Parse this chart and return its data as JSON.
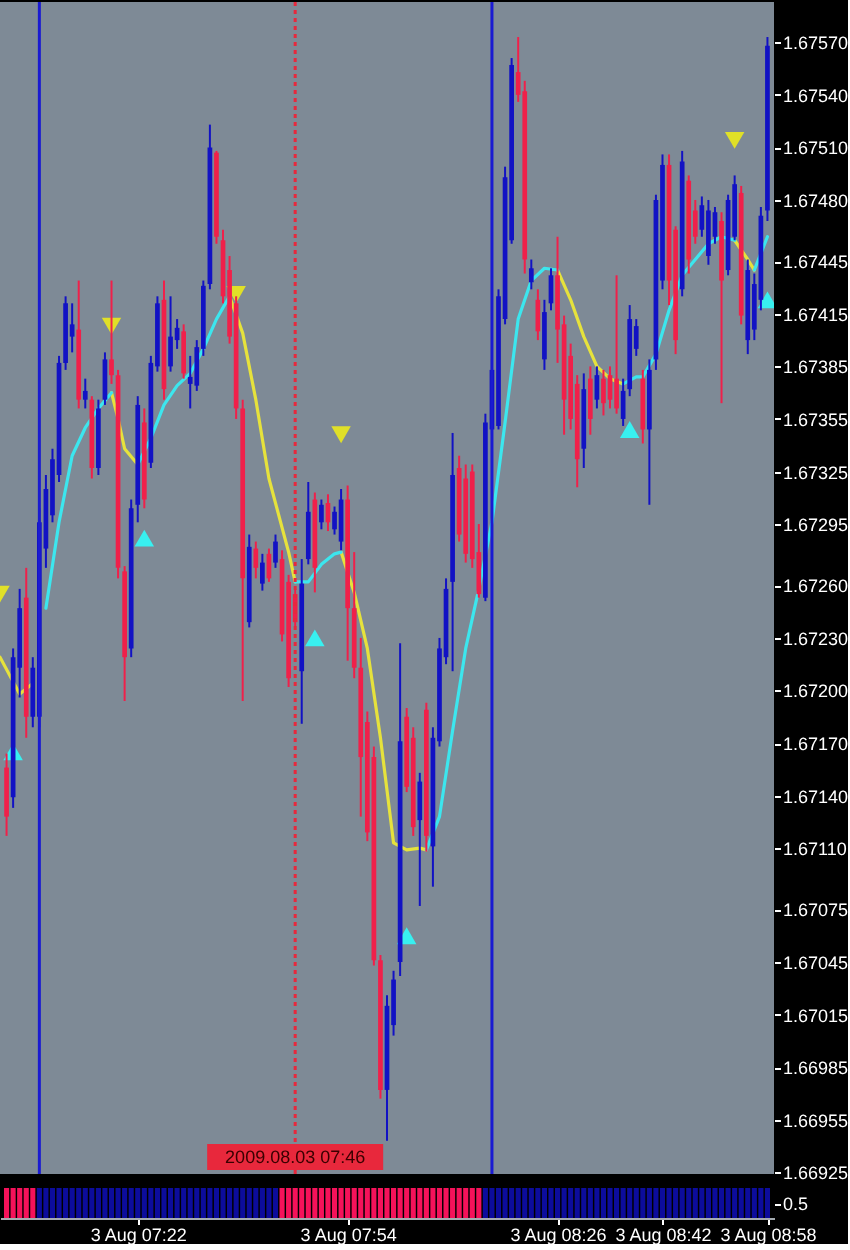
{
  "chart_data": [
    {
      "type": "candlestick",
      "x": [
        "2009-08-03T07:02",
        "2009-08-03T07:03",
        "2009-08-03T07:04",
        "2009-08-03T07:05",
        "2009-08-03T07:06",
        "2009-08-03T07:07",
        "2009-08-03T07:08",
        "2009-08-03T07:09",
        "2009-08-03T07:10",
        "2009-08-03T07:11",
        "2009-08-03T07:12",
        "2009-08-03T07:13",
        "2009-08-03T07:14",
        "2009-08-03T07:15",
        "2009-08-03T07:16",
        "2009-08-03T07:17",
        "2009-08-03T07:18",
        "2009-08-03T07:19",
        "2009-08-03T07:20",
        "2009-08-03T07:21",
        "2009-08-03T07:22",
        "2009-08-03T07:23",
        "2009-08-03T07:24",
        "2009-08-03T07:25",
        "2009-08-03T07:26",
        "2009-08-03T07:27",
        "2009-08-03T07:28",
        "2009-08-03T07:29",
        "2009-08-03T07:30",
        "2009-08-03T07:31",
        "2009-08-03T07:32",
        "2009-08-03T07:33",
        "2009-08-03T07:34",
        "2009-08-03T07:35",
        "2009-08-03T07:36",
        "2009-08-03T07:37",
        "2009-08-03T07:38",
        "2009-08-03T07:39",
        "2009-08-03T07:40",
        "2009-08-03T07:41",
        "2009-08-03T07:42",
        "2009-08-03T07:43",
        "2009-08-03T07:44",
        "2009-08-03T07:45",
        "2009-08-03T07:46",
        "2009-08-03T07:47",
        "2009-08-03T07:48",
        "2009-08-03T07:49",
        "2009-08-03T07:50",
        "2009-08-03T07:51",
        "2009-08-03T07:52",
        "2009-08-03T07:53",
        "2009-08-03T07:54",
        "2009-08-03T07:55",
        "2009-08-03T07:56",
        "2009-08-03T07:57",
        "2009-08-03T07:58",
        "2009-08-03T07:59",
        "2009-08-03T08:00",
        "2009-08-03T08:01",
        "2009-08-03T08:02",
        "2009-08-03T08:03",
        "2009-08-03T08:04",
        "2009-08-03T08:05",
        "2009-08-03T08:06",
        "2009-08-03T08:07",
        "2009-08-03T08:08",
        "2009-08-03T08:09",
        "2009-08-03T08:10",
        "2009-08-03T08:11",
        "2009-08-03T08:12",
        "2009-08-03T08:13",
        "2009-08-03T08:14",
        "2009-08-03T08:15",
        "2009-08-03T08:16",
        "2009-08-03T08:17",
        "2009-08-03T08:18",
        "2009-08-03T08:19",
        "2009-08-03T08:20",
        "2009-08-03T08:21",
        "2009-08-03T08:22",
        "2009-08-03T08:23",
        "2009-08-03T08:24",
        "2009-08-03T08:25",
        "2009-08-03T08:26",
        "2009-08-03T08:27",
        "2009-08-03T08:28",
        "2009-08-03T08:29",
        "2009-08-03T08:30",
        "2009-08-03T08:31",
        "2009-08-03T08:32",
        "2009-08-03T08:33",
        "2009-08-03T08:34",
        "2009-08-03T08:35",
        "2009-08-03T08:36",
        "2009-08-03T08:37",
        "2009-08-03T08:38",
        "2009-08-03T08:39",
        "2009-08-03T08:40",
        "2009-08-03T08:41",
        "2009-08-03T08:42",
        "2009-08-03T08:43",
        "2009-08-03T08:44",
        "2009-08-03T08:45",
        "2009-08-03T08:46",
        "2009-08-03T08:47",
        "2009-08-03T08:48",
        "2009-08-03T08:49",
        "2009-08-03T08:50",
        "2009-08-03T08:51",
        "2009-08-03T08:52",
        "2009-08-03T08:53",
        "2009-08-03T08:54",
        "2009-08-03T08:55",
        "2009-08-03T08:56",
        "2009-08-03T08:57",
        "2009-08-03T08:58"
      ],
      "ohlc": [
        [
          1.67156,
          1.67164,
          1.67117,
          1.67128
        ],
        [
          1.67139,
          1.67224,
          1.67133,
          1.67219
        ],
        [
          1.67213,
          1.67258,
          1.67196,
          1.67247
        ],
        [
          1.67253,
          1.6727,
          1.67173,
          1.67185
        ],
        [
          1.67185,
          1.67219,
          1.67179,
          1.67213
        ],
        [
          1.67185,
          1.67304,
          1.67179,
          1.67296
        ],
        [
          1.67281,
          1.67323,
          1.6727,
          1.67315
        ],
        [
          1.673,
          1.67338,
          1.67296,
          1.67332
        ],
        [
          1.67323,
          1.67391,
          1.67319,
          1.67387
        ],
        [
          1.67387,
          1.67425,
          1.67383,
          1.67421
        ],
        [
          1.67402,
          1.67421,
          1.67393,
          1.67409
        ],
        [
          1.67406,
          1.67434,
          1.67361,
          1.67366
        ],
        [
          1.67366,
          1.67378,
          1.67361,
          1.67371
        ],
        [
          1.67366,
          1.67368,
          1.67321,
          1.67327
        ],
        [
          1.67327,
          1.67366,
          1.67323,
          1.67361
        ],
        [
          1.67366,
          1.67393,
          1.67363,
          1.67389
        ],
        [
          1.67389,
          1.67434,
          1.67375,
          1.6738
        ],
        [
          1.6738,
          1.67383,
          1.67264,
          1.6727
        ],
        [
          1.67268,
          1.67271,
          1.67194,
          1.67219
        ],
        [
          1.67224,
          1.67309,
          1.67219,
          1.67304
        ],
        [
          1.67306,
          1.67368,
          1.67296,
          1.67363
        ],
        [
          1.67353,
          1.67361,
          1.67304,
          1.67309
        ],
        [
          1.6733,
          1.67391,
          1.67327,
          1.67387
        ],
        [
          1.67385,
          1.67425,
          1.67382,
          1.67421
        ],
        [
          1.67423,
          1.67434,
          1.67366,
          1.67372
        ],
        [
          1.67385,
          1.67425,
          1.67382,
          1.67402
        ],
        [
          1.674,
          1.67412,
          1.67395,
          1.67407
        ],
        [
          1.67405,
          1.67409,
          1.67378,
          1.67381
        ],
        [
          1.67375,
          1.67391,
          1.67361,
          1.67379
        ],
        [
          1.67374,
          1.674,
          1.67371,
          1.67396
        ],
        [
          1.67395,
          1.67434,
          1.67391,
          1.67431
        ],
        [
          1.67432,
          1.67523,
          1.67429,
          1.6751
        ],
        [
          1.67507,
          1.67508,
          1.67455,
          1.67459
        ],
        [
          1.67457,
          1.67463,
          1.67421,
          1.67425
        ],
        [
          1.6744,
          1.67448,
          1.67398,
          1.67402
        ],
        [
          1.67421,
          1.67425,
          1.67355,
          1.67361
        ],
        [
          1.67361,
          1.67366,
          1.67194,
          1.67264
        ],
        [
          1.67239,
          1.67289,
          1.67236,
          1.67282
        ],
        [
          1.67281,
          1.67285,
          1.67264,
          1.6727
        ],
        [
          1.67261,
          1.67278,
          1.67257,
          1.67273
        ],
        [
          1.67278,
          1.67281,
          1.67262,
          1.67264
        ],
        [
          1.67273,
          1.67289,
          1.6727,
          1.67285
        ],
        [
          1.67275,
          1.6728,
          1.67228,
          1.67232
        ],
        [
          1.67262,
          1.67266,
          1.67202,
          1.67207
        ],
        [
          1.67255,
          1.67258,
          1.67236,
          1.67239
        ],
        [
          1.67211,
          1.67275,
          1.67181,
          1.67261
        ],
        [
          1.67275,
          1.67319,
          1.67272,
          1.67302
        ],
        [
          1.67309,
          1.67313,
          1.67256,
          1.6727
        ],
        [
          1.67296,
          1.67309,
          1.67292,
          1.67306
        ],
        [
          1.67307,
          1.67312,
          1.67291,
          1.67296
        ],
        [
          1.67292,
          1.67305,
          1.67289,
          1.67302
        ],
        [
          1.67285,
          1.67315,
          1.6728,
          1.67309
        ],
        [
          1.67309,
          1.67317,
          1.67217,
          1.67247
        ],
        [
          1.67247,
          1.67279,
          1.67207,
          1.67213
        ],
        [
          1.67213,
          1.6723,
          1.67128,
          1.67162
        ],
        [
          1.67182,
          1.67188,
          1.67114,
          1.67119
        ],
        [
          1.67162,
          1.67168,
          1.67043,
          1.67046
        ],
        [
          1.67046,
          1.67049,
          1.66967,
          1.66972
        ],
        [
          1.66972,
          1.67026,
          1.66943,
          1.6702
        ],
        [
          1.67009,
          1.6704,
          1.67003,
          1.67035
        ],
        [
          1.67045,
          1.67227,
          1.67037,
          1.67171
        ],
        [
          1.67185,
          1.6719,
          1.67142,
          1.67145
        ],
        [
          1.67173,
          1.67179,
          1.67117,
          1.67122
        ],
        [
          1.67126,
          1.67153,
          1.67077,
          1.67148
        ],
        [
          1.67189,
          1.67193,
          1.67108,
          1.67117
        ],
        [
          1.67111,
          1.67179,
          1.67088,
          1.67173
        ],
        [
          1.67171,
          1.6723,
          1.67168,
          1.67224
        ],
        [
          1.67219,
          1.67264,
          1.67215,
          1.67258
        ],
        [
          1.67262,
          1.67347,
          1.67211,
          1.67323
        ],
        [
          1.67327,
          1.67334,
          1.67285,
          1.67289
        ],
        [
          1.67321,
          1.67329,
          1.67273,
          1.67278
        ],
        [
          1.67325,
          1.67329,
          1.6727,
          1.67275
        ],
        [
          1.67279,
          1.67295,
          1.67253,
          1.67255
        ],
        [
          1.67253,
          1.67358,
          1.67251,
          1.67353
        ],
        [
          1.67349,
          1.67389,
          1.67346,
          1.67383
        ],
        [
          1.67351,
          1.67429,
          1.67349,
          1.67425
        ],
        [
          1.67412,
          1.67499,
          1.67409,
          1.67493
        ],
        [
          1.67457,
          1.67561,
          1.67455,
          1.67557
        ],
        [
          1.67553,
          1.67573,
          1.67536,
          1.6754
        ],
        [
          1.67542,
          1.67548,
          1.67438,
          1.67446
        ],
        [
          1.67433,
          1.67446,
          1.67429,
          1.67441
        ],
        [
          1.67423,
          1.67429,
          1.674,
          1.67405
        ],
        [
          1.67389,
          1.67423,
          1.67383,
          1.67416
        ],
        [
          1.67421,
          1.67441,
          1.67417,
          1.67437
        ],
        [
          1.67437,
          1.67459,
          1.67387,
          1.67406
        ],
        [
          1.67409,
          1.67414,
          1.67346,
          1.67366
        ],
        [
          1.67391,
          1.67398,
          1.67349,
          1.67355
        ],
        [
          1.67375,
          1.6738,
          1.67316,
          1.67332
        ],
        [
          1.67338,
          1.67381,
          1.67327,
          1.67372
        ],
        [
          1.67378,
          1.67385,
          1.67346,
          1.67355
        ],
        [
          1.67366,
          1.67385,
          1.67361,
          1.6738
        ],
        [
          1.67378,
          1.67383,
          1.67357,
          1.67364
        ],
        [
          1.6738,
          1.67385,
          1.67361,
          1.67366
        ],
        [
          1.67378,
          1.67437,
          1.67358,
          1.67361
        ],
        [
          1.67355,
          1.67378,
          1.67351,
          1.67371
        ],
        [
          1.67372,
          1.6742,
          1.67368,
          1.67412
        ],
        [
          1.67395,
          1.67412,
          1.67391,
          1.67408
        ],
        [
          1.67378,
          1.67383,
          1.67341,
          1.67349
        ],
        [
          1.67349,
          1.67389,
          1.67306,
          1.67383
        ],
        [
          1.67389,
          1.67483,
          1.67383,
          1.6748
        ],
        [
          1.67434,
          1.67506,
          1.67429,
          1.675
        ],
        [
          1.675,
          1.67506,
          1.6742,
          1.67434
        ],
        [
          1.67463,
          1.67465,
          1.67392,
          1.674
        ],
        [
          1.67429,
          1.67508,
          1.67425,
          1.67502
        ],
        [
          1.67491,
          1.67494,
          1.67438,
          1.67446
        ],
        [
          1.67474,
          1.6748,
          1.67455,
          1.67459
        ],
        [
          1.67463,
          1.67482,
          1.67459,
          1.67477
        ],
        [
          1.67448,
          1.6748,
          1.67443,
          1.67474
        ],
        [
          1.67459,
          1.67476,
          1.67455,
          1.67473
        ],
        [
          1.67468,
          1.67473,
          1.67364,
          1.67434
        ],
        [
          1.6744,
          1.67483,
          1.67437,
          1.6748
        ],
        [
          1.67459,
          1.67494,
          1.67457,
          1.67489
        ],
        [
          1.67484,
          1.67488,
          1.67409,
          1.67414
        ],
        [
          1.674,
          1.67446,
          1.67392,
          1.6744
        ],
        [
          1.67406,
          1.67438,
          1.674,
          1.67432
        ],
        [
          1.67423,
          1.67476,
          1.67417,
          1.67471
        ],
        [
          1.67474,
          1.67573,
          1.67468,
          1.67568
        ]
      ],
      "colors": [
        "#f0204a",
        "#1212c4",
        "#1212c4",
        "#f0204a",
        "#1212c4",
        "#1212c4",
        "#1212c4",
        "#1212c4",
        "#1212c4",
        "#1212c4",
        "#1212c4",
        "#f0204a",
        "#1212c4",
        "#f0204a",
        "#1212c4",
        "#1212c4",
        "#f0204a",
        "#f0204a",
        "#f0204a",
        "#1212c4",
        "#1212c4",
        "#f0204a",
        "#1212c4",
        "#1212c4",
        "#f0204a",
        "#1212c4",
        "#1212c4",
        "#f0204a",
        "#1212c4",
        "#1212c4",
        "#1212c4",
        "#1212c4",
        "#f0204a",
        "#f0204a",
        "#f0204a",
        "#f0204a",
        "#f0204a",
        "#1212c4",
        "#f0204a",
        "#1212c4",
        "#f0204a",
        "#1212c4",
        "#f0204a",
        "#f0204a",
        "#f0204a",
        "#1212c4",
        "#1212c4",
        "#f0204a",
        "#1212c4",
        "#f0204a",
        "#1212c4",
        "#1212c4",
        "#f0204a",
        "#f0204a",
        "#f0204a",
        "#f0204a",
        "#f0204a",
        "#f0204a",
        "#1212c4",
        "#1212c4",
        "#1212c4",
        "#f0204a",
        "#f0204a",
        "#1212c4",
        "#f0204a",
        "#1212c4",
        "#1212c4",
        "#1212c4",
        "#1212c4",
        "#f0204a",
        "#f0204a",
        "#f0204a",
        "#f0204a",
        "#1212c4",
        "#1212c4",
        "#1212c4",
        "#1212c4",
        "#1212c4",
        "#f0204a",
        "#f0204a",
        "#1212c4",
        "#f0204a",
        "#1212c4",
        "#1212c4",
        "#f0204a",
        "#f0204a",
        "#f0204a",
        "#f0204a",
        "#1212c4",
        "#f0204a",
        "#1212c4",
        "#f0204a",
        "#f0204a",
        "#f0204a",
        "#1212c4",
        "#1212c4",
        "#1212c4",
        "#f0204a",
        "#1212c4",
        "#1212c4",
        "#1212c4",
        "#f0204a",
        "#f0204a",
        "#1212c4",
        "#f0204a",
        "#f0204a",
        "#1212c4",
        "#1212c4",
        "#1212c4",
        "#f0204a",
        "#1212c4",
        "#1212c4",
        "#f0204a",
        "#1212c4",
        "#1212c4",
        "#1212c4",
        "#1212c4"
      ],
      "series": [
        {
          "type": "line",
          "color": "#e6e23c",
          "x": [
            "2009-08-03T07:01",
            "2009-08-03T07:04",
            "2009-08-03T07:06",
            "2009-08-03T07:12",
            "2009-08-03T07:18",
            "2009-08-03T07:19",
            "2009-08-03T07:20",
            "2009-08-03T07:22",
            "2009-08-03T07:29",
            "2009-08-03T07:36",
            "2009-08-03T07:38",
            "2009-08-03T07:40",
            "2009-08-03T07:42",
            "2009-08-03T07:45",
            "2009-08-03T07:46",
            "2009-08-03T07:50",
            "2009-08-03T07:53",
            "2009-08-03T07:55",
            "2009-08-03T07:57",
            "2009-08-03T07:59",
            "2009-08-03T08:01",
            "2009-08-03T08:03",
            "2009-08-03T08:05",
            "2009-08-03T08:06",
            "2009-08-03T08:16",
            "2009-08-03T08:26",
            "2009-08-03T08:28",
            "2009-08-03T08:30",
            "2009-08-03T08:32",
            "2009-08-03T08:34",
            "2009-08-03T08:36",
            "2009-08-03T08:46",
            "2009-08-03T08:53",
            "2009-08-03T08:55",
            "2009-08-03T08:56"
          ],
          "values": [
            1.67219,
            1.67198,
            1.67204,
            null,
            1.6737,
            1.67355,
            1.67338,
            1.67329,
            null,
            1.67425,
            1.67404,
            1.67366,
            1.67321,
            1.67279,
            1.67262,
            null,
            1.67279,
            1.67256,
            1.67224,
            1.67173,
            1.67113,
            1.67109,
            1.6711,
            1.67109,
            null,
            1.6744,
            1.67423,
            1.67402,
            1.67385,
            1.67378,
            1.67375,
            null,
            1.67457,
            1.67446,
            1.6744
          ]
        },
        {
          "type": "line",
          "color": "#3ce6ee",
          "x": [
            "2009-08-03T07:08",
            "2009-08-03T07:10",
            "2009-08-03T07:12",
            "2009-08-03T07:14",
            "2009-08-03T07:16",
            "2009-08-03T07:18",
            "2009-08-03T07:20",
            "2009-08-03T07:22",
            "2009-08-03T07:24",
            "2009-08-03T07:26",
            "2009-08-03T07:28",
            "2009-08-03T07:30",
            "2009-08-03T07:32",
            "2009-08-03T07:34",
            "2009-08-03T07:36",
            "2009-08-03T07:41",
            "2009-08-03T07:46",
            "2009-08-03T07:48",
            "2009-08-03T07:50",
            "2009-08-03T07:52",
            "2009-08-03T07:53",
            "2009-08-03T07:59",
            "2009-08-03T08:06",
            "2009-08-03T08:08",
            "2009-08-03T08:10",
            "2009-08-03T08:12",
            "2009-08-03T08:14",
            "2009-08-03T08:16",
            "2009-08-03T08:18",
            "2009-08-03T08:20",
            "2009-08-03T08:22",
            "2009-08-03T08:24",
            "2009-08-03T08:26",
            "2009-08-03T08:31",
            "2009-08-03T08:36",
            "2009-08-03T08:38",
            "2009-08-03T08:39",
            "2009-08-03T08:41",
            "2009-08-03T08:43",
            "2009-08-03T08:45",
            "2009-08-03T08:47",
            "2009-08-03T08:49",
            "2009-08-03T08:51",
            "2009-08-03T08:53",
            "2009-08-03T08:54",
            "2009-08-03T08:56",
            "2009-08-03T08:58"
          ],
          "values": [
            1.67247,
            1.67296,
            1.67334,
            1.6735,
            1.67361,
            1.6737,
            null,
            1.67329,
            1.67344,
            1.67363,
            1.67374,
            1.67381,
            1.67395,
            1.67412,
            1.67425,
            null,
            1.67262,
            1.67262,
            1.67272,
            1.67278,
            1.67279,
            null,
            1.67109,
            1.67128,
            1.67177,
            1.67224,
            1.67258,
            1.67296,
            1.67353,
            1.67412,
            1.67434,
            1.67441,
            1.6744,
            null,
            1.67375,
            1.67379,
            1.67379,
            1.67392,
            1.67417,
            1.67437,
            1.67446,
            1.67455,
            1.67459,
            1.67457,
            null,
            1.6744,
            1.67459
          ]
        },
        {
          "type": "scatter",
          "color": "#38f0f0",
          "marker": "triangle",
          "x": [
            "2009-08-03T07:03",
            "2009-08-03T07:23",
            "2009-08-03T07:49",
            "2009-08-03T08:03",
            "2009-08-03T08:37",
            "2009-08-03T08:58"
          ],
          "values": [
            1.67165,
            1.67287,
            1.6723,
            1.6706,
            1.67349,
            1.67423
          ]
        },
        {
          "type": "scatter",
          "color": "#e0e028",
          "marker": "triangle",
          "x": [
            "2009-08-03T07:01",
            "2009-08-03T07:18",
            "2009-08-03T07:37",
            "2009-08-03T07:53",
            "2009-08-03T08:53"
          ],
          "values": [
            1.67255,
            1.67408,
            1.67426,
            1.67346,
            1.67514
          ]
        }
      ],
      "ref_lines": [
        {
          "axis": "x",
          "value": "2009-08-03T07:07",
          "color": "#1a1ad2"
        },
        {
          "axis": "x",
          "value": "2009-08-03T07:46",
          "label": "2009.08.03 07:46",
          "color": "#e8283c",
          "line_style": "dotted"
        },
        {
          "axis": "x",
          "value": "2009-08-03T08:16",
          "color": "#1a1ad2"
        }
      ],
      "xlim": [
        "2009-08-03T07:01",
        "2009-08-03T08:59"
      ],
      "ylim": [
        1.66924,
        1.67593
      ],
      "yticks": [
        1.66925,
        1.66955,
        1.66985,
        1.67015,
        1.67045,
        1.67075,
        {
          "value": 1.6711,
          "label": "1.67110"
        },
        {
          "value": 1.6714,
          "label": "1.67140"
        },
        {
          "value": 1.6717,
          "label": "1.67170"
        },
        {
          "value": 1.672,
          "label": "1.67200"
        },
        {
          "value": 1.6723,
          "label": "1.67230"
        },
        {
          "value": 1.6726,
          "label": "1.67260"
        },
        1.67295,
        1.67325,
        1.67355,
        1.67385,
        1.67415,
        1.67445,
        {
          "value": 1.6748,
          "label": "1.67480"
        },
        {
          "value": 1.6751,
          "label": "1.67510"
        },
        {
          "value": 1.6754,
          "label": "1.67540"
        },
        {
          "value": 1.6757,
          "label": "1.67570"
        }
      ],
      "tick_labels": "y"
    },
    {
      "type": "bar",
      "x": [
        "2009-08-03T07:02",
        "2009-08-03T07:03",
        "2009-08-03T07:04",
        "2009-08-03T07:05",
        "2009-08-03T07:06",
        "2009-08-03T07:07",
        "2009-08-03T07:08",
        "2009-08-03T07:09",
        "2009-08-03T07:10",
        "2009-08-03T07:11",
        "2009-08-03T07:12",
        "2009-08-03T07:13",
        "2009-08-03T07:14",
        "2009-08-03T07:15",
        "2009-08-03T07:16",
        "2009-08-03T07:17",
        "2009-08-03T07:18",
        "2009-08-03T07:19",
        "2009-08-03T07:20",
        "2009-08-03T07:21",
        "2009-08-03T07:22",
        "2009-08-03T07:23",
        "2009-08-03T07:24",
        "2009-08-03T07:25",
        "2009-08-03T07:26",
        "2009-08-03T07:27",
        "2009-08-03T07:28",
        "2009-08-03T07:29",
        "2009-08-03T07:30",
        "2009-08-03T07:31",
        "2009-08-03T07:32",
        "2009-08-03T07:33",
        "2009-08-03T07:34",
        "2009-08-03T07:35",
        "2009-08-03T07:36",
        "2009-08-03T07:37",
        "2009-08-03T07:38",
        "2009-08-03T07:39",
        "2009-08-03T07:40",
        "2009-08-03T07:41",
        "2009-08-03T07:42",
        "2009-08-03T07:43",
        "2009-08-03T07:44",
        "2009-08-03T07:45",
        "2009-08-03T07:46",
        "2009-08-03T07:47",
        "2009-08-03T07:48",
        "2009-08-03T07:49",
        "2009-08-03T07:50",
        "2009-08-03T07:51",
        "2009-08-03T07:52",
        "2009-08-03T07:53",
        "2009-08-03T07:54",
        "2009-08-03T07:55",
        "2009-08-03T07:56",
        "2009-08-03T07:57",
        "2009-08-03T07:58",
        "2009-08-03T07:59",
        "2009-08-03T08:00",
        "2009-08-03T08:01",
        "2009-08-03T08:02",
        "2009-08-03T08:03",
        "2009-08-03T08:04",
        "2009-08-03T08:05",
        "2009-08-03T08:06",
        "2009-08-03T08:07",
        "2009-08-03T08:08",
        "2009-08-03T08:09",
        "2009-08-03T08:10",
        "2009-08-03T08:11",
        "2009-08-03T08:12",
        "2009-08-03T08:13",
        "2009-08-03T08:14",
        "2009-08-03T08:15",
        "2009-08-03T08:16",
        "2009-08-03T08:17",
        "2009-08-03T08:18",
        "2009-08-03T08:19",
        "2009-08-03T08:20",
        "2009-08-03T08:21",
        "2009-08-03T08:22",
        "2009-08-03T08:23",
        "2009-08-03T08:24",
        "2009-08-03T08:25",
        "2009-08-03T08:26",
        "2009-08-03T08:27",
        "2009-08-03T08:28",
        "2009-08-03T08:29",
        "2009-08-03T08:30",
        "2009-08-03T08:31",
        "2009-08-03T08:32",
        "2009-08-03T08:33",
        "2009-08-03T08:34",
        "2009-08-03T08:35",
        "2009-08-03T08:36",
        "2009-08-03T08:37",
        "2009-08-03T08:38",
        "2009-08-03T08:39",
        "2009-08-03T08:40",
        "2009-08-03T08:41",
        "2009-08-03T08:42",
        "2009-08-03T08:43",
        "2009-08-03T08:44",
        "2009-08-03T08:45",
        "2009-08-03T08:46",
        "2009-08-03T08:47",
        "2009-08-03T08:48",
        "2009-08-03T08:49",
        "2009-08-03T08:50",
        "2009-08-03T08:51",
        "2009-08-03T08:52",
        "2009-08-03T08:53",
        "2009-08-03T08:54",
        "2009-08-03T08:55",
        "2009-08-03T08:56",
        "2009-08-03T08:57",
        "2009-08-03T08:58"
      ],
      "values": [
        1,
        1,
        1,
        1,
        1,
        1,
        1,
        1,
        1,
        1,
        1,
        1,
        1,
        1,
        1,
        1,
        1,
        1,
        1,
        1,
        1,
        1,
        1,
        1,
        1,
        1,
        1,
        1,
        1,
        1,
        1,
        1,
        1,
        1,
        1,
        1,
        1,
        1,
        1,
        1,
        1,
        1,
        1,
        1,
        1,
        1,
        1,
        1,
        1,
        1,
        1,
        1,
        1,
        1,
        1,
        1,
        1,
        1,
        1,
        1,
        1,
        1,
        1,
        1,
        1,
        1,
        1,
        1,
        1,
        1,
        1,
        1,
        1,
        1,
        1,
        1,
        1,
        1,
        1,
        1,
        1,
        1,
        1,
        1,
        1,
        1,
        1,
        1,
        1,
        1,
        1,
        1,
        1,
        1,
        1,
        1,
        1,
        1,
        1,
        1,
        1,
        1,
        1,
        1,
        1,
        1,
        1,
        1,
        1,
        1,
        1,
        1,
        1,
        1,
        1,
        1,
        1
      ],
      "colors": [
        "#f5125a",
        "#f5125a",
        "#f5125a",
        "#f5125a",
        "#f5125a",
        "#0c0c9c",
        "#0c0c9c",
        "#0c0c9c",
        "#0c0c9c",
        "#0c0c9c",
        "#0c0c9c",
        "#0c0c9c",
        "#0c0c9c",
        "#0c0c9c",
        "#0c0c9c",
        "#0c0c9c",
        "#0c0c9c",
        "#0c0c9c",
        "#0c0c9c",
        "#0c0c9c",
        "#0c0c9c",
        "#0c0c9c",
        "#0c0c9c",
        "#0c0c9c",
        "#0c0c9c",
        "#0c0c9c",
        "#0c0c9c",
        "#0c0c9c",
        "#0c0c9c",
        "#0c0c9c",
        "#0c0c9c",
        "#0c0c9c",
        "#0c0c9c",
        "#0c0c9c",
        "#0c0c9c",
        "#0c0c9c",
        "#0c0c9c",
        "#0c0c9c",
        "#0c0c9c",
        "#0c0c9c",
        "#0c0c9c",
        "#0c0c9c",
        "#f5125a",
        "#f5125a",
        "#f5125a",
        "#f5125a",
        "#f5125a",
        "#f5125a",
        "#f5125a",
        "#f5125a",
        "#f5125a",
        "#f5125a",
        "#f5125a",
        "#f5125a",
        "#f5125a",
        "#f5125a",
        "#f5125a",
        "#f5125a",
        "#f5125a",
        "#f5125a",
        "#f5125a",
        "#f5125a",
        "#f5125a",
        "#f5125a",
        "#f5125a",
        "#f5125a",
        "#f5125a",
        "#f5125a",
        "#f5125a",
        "#f5125a",
        "#f5125a",
        "#f5125a",
        "#f5125a",
        "#0c0c9c",
        "#0c0c9c",
        "#0c0c9c",
        "#0c0c9c",
        "#0c0c9c",
        "#0c0c9c",
        "#0c0c9c",
        "#0c0c9c",
        "#0c0c9c",
        "#0c0c9c",
        "#0c0c9c",
        "#0c0c9c",
        "#0c0c9c",
        "#0c0c9c",
        "#0c0c9c",
        "#0c0c9c",
        "#0c0c9c",
        "#0c0c9c",
        "#0c0c9c",
        "#0c0c9c",
        "#0c0c9c",
        "#0c0c9c",
        "#0c0c9c",
        "#0c0c9c",
        "#0c0c9c",
        "#0c0c9c",
        "#0c0c9c",
        "#0c0c9c",
        "#0c0c9c",
        "#0c0c9c",
        "#0c0c9c",
        "#0c0c9c",
        "#0c0c9c",
        "#0c0c9c",
        "#0c0c9c",
        "#0c0c9c",
        "#0c0c9c",
        "#0c0c9c",
        "#0c0c9c",
        "#0c0c9c",
        "#0c0c9c",
        "#0c0c9c",
        "#0c0c9c",
        "#0c0c9c"
      ],
      "xlim": [
        "2009-08-03T07:01",
        "2009-08-03T08:59"
      ],
      "xticks": [
        {
          "value": "2009-08-03T07:22",
          "label": "3 Aug 07:22"
        },
        {
          "value": "2009-08-03T07:54",
          "label": "3 Aug 07:54"
        },
        {
          "value": "2009-08-03T08:26",
          "label": "3 Aug 08:26"
        },
        {
          "value": "2009-08-03T08:42",
          "label": "3 Aug 08:42"
        },
        {
          "value": "2009-08-03T08:58",
          "label": "3 Aug 08:58"
        }
      ],
      "ylim": [
        0,
        1
      ],
      "yticks": [
        0.5
      ]
    }
  ]
}
